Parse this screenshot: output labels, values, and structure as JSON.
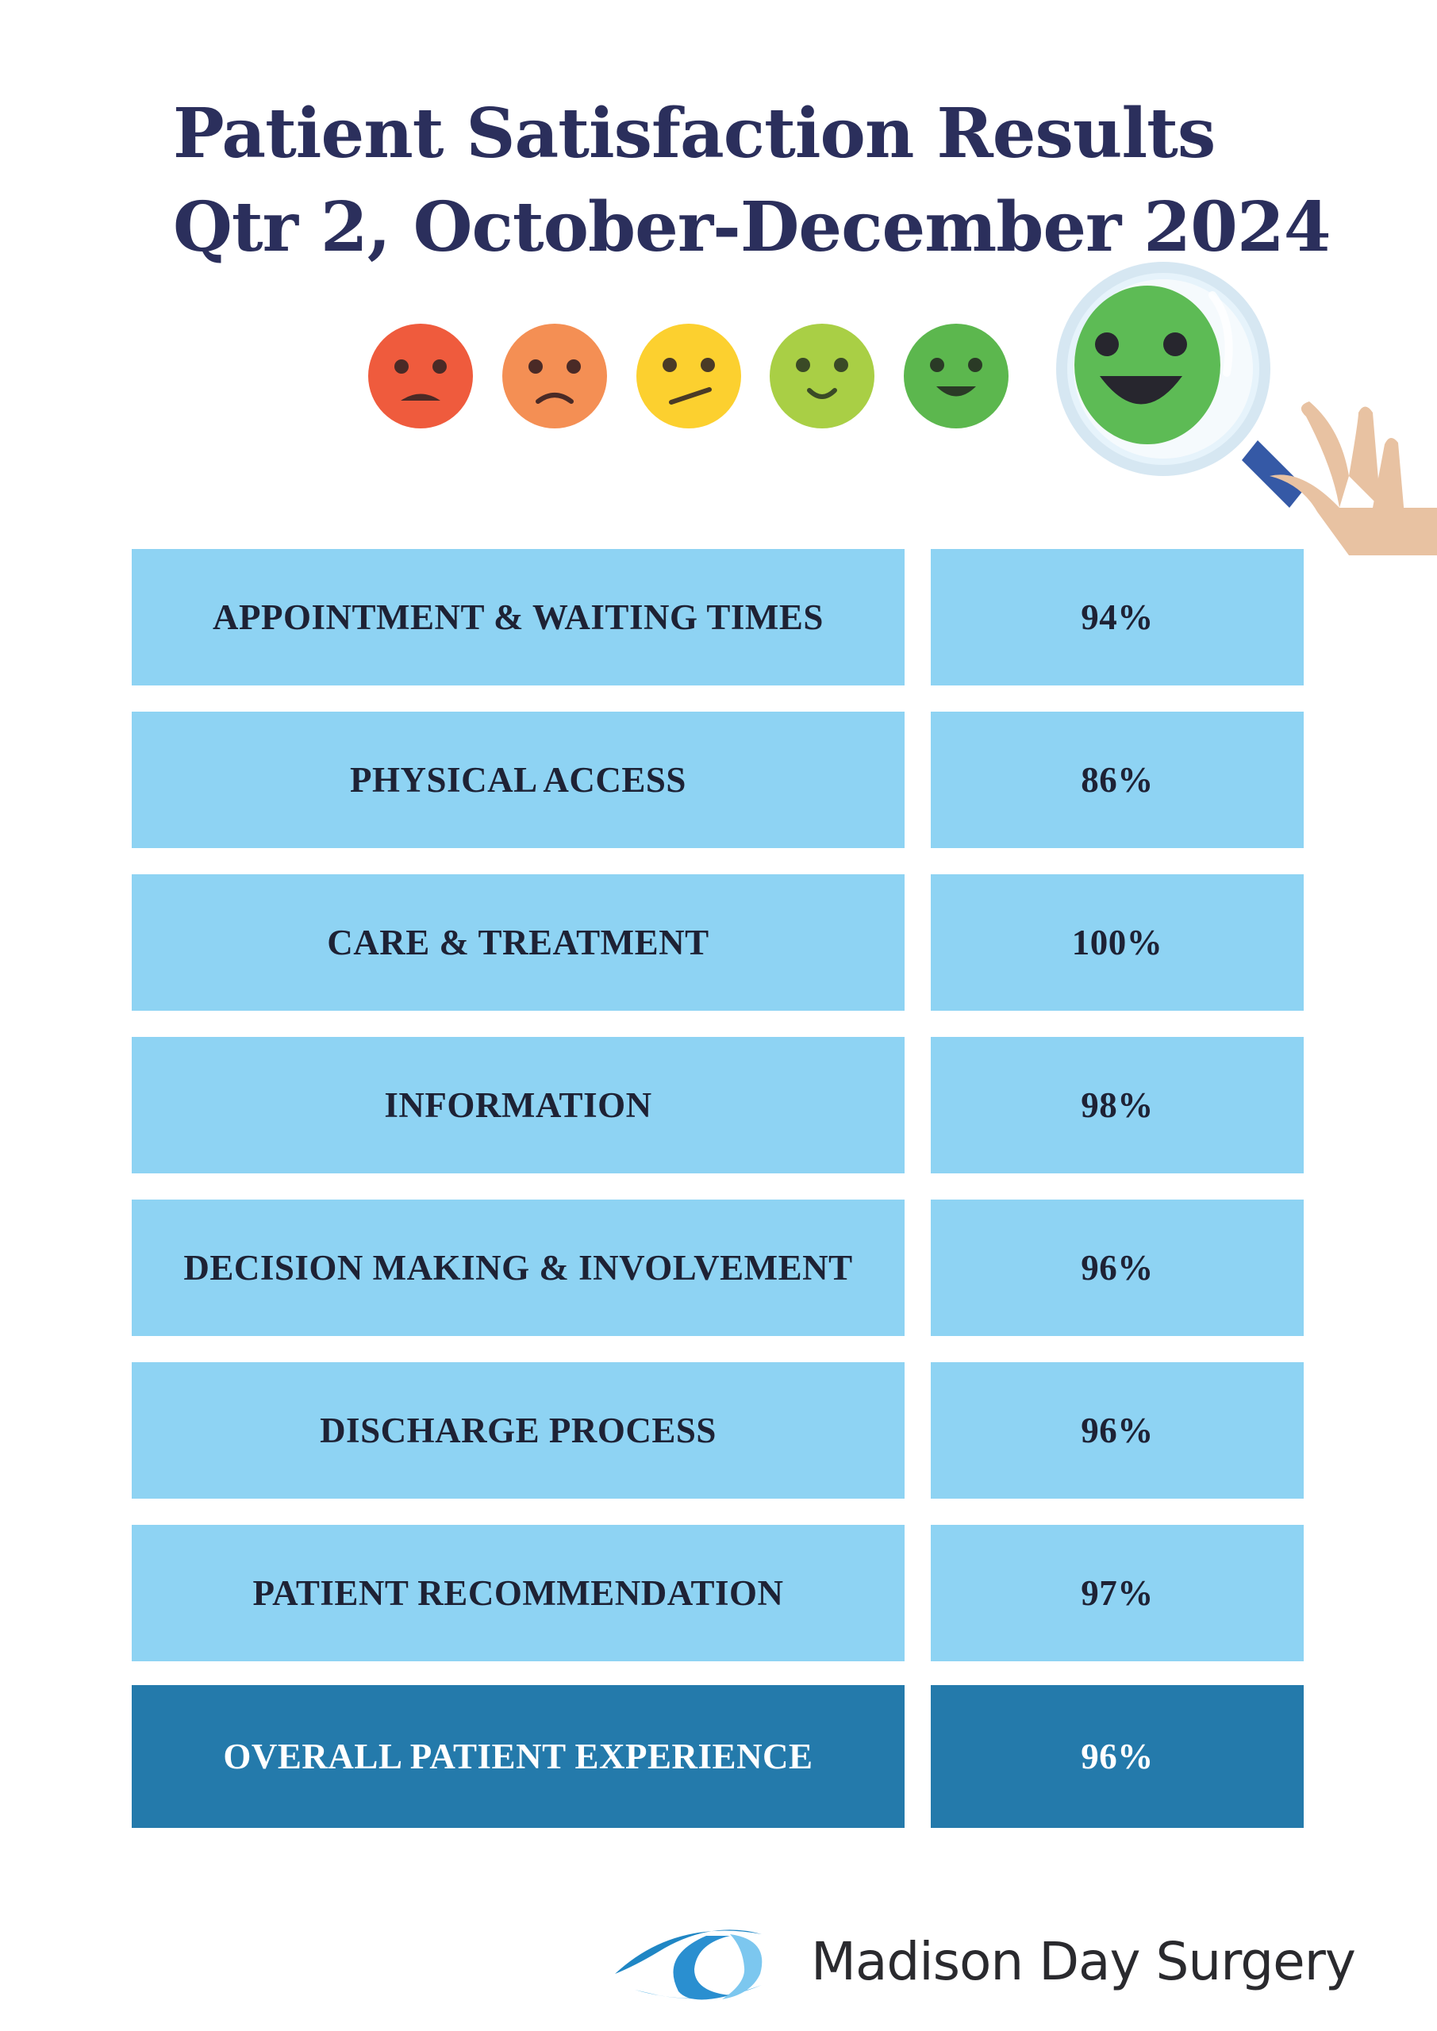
{
  "header": {
    "title_line1": "Patient Satisfaction Results",
    "title_line2": "Qtr 2, October-December 2024"
  },
  "rating_faces": [
    {
      "icon": "very-unhappy-face-icon",
      "color": "#ef5b3d"
    },
    {
      "icon": "unhappy-face-icon",
      "color": "#f48f54"
    },
    {
      "icon": "neutral-face-icon",
      "color": "#fcd02f"
    },
    {
      "icon": "slight-smile-face-icon",
      "color": "#a9cf45"
    },
    {
      "icon": "smile-face-icon",
      "color": "#5cb74e"
    },
    {
      "icon": "big-smile-face-icon",
      "color": "#5dbb55"
    }
  ],
  "magnifier_icon": "magnifying-glass-hand-icon",
  "results": [
    {
      "label": "APPOINTMENT & WAITING TIMES",
      "value": "94%"
    },
    {
      "label": "PHYSICAL ACCESS",
      "value": "86%"
    },
    {
      "label": "CARE & TREATMENT",
      "value": "100%"
    },
    {
      "label": "INFORMATION",
      "value": "98%"
    },
    {
      "label": "DECISION MAKING & INVOLVEMENT",
      "value": "96%"
    },
    {
      "label": "DISCHARGE PROCESS",
      "value": "96%"
    },
    {
      "label": "PATIENT RECOMMENDATION",
      "value": "97%"
    }
  ],
  "overall": {
    "label": "OVERALL PATIENT EXPERIENCE",
    "value": "96%"
  },
  "colors": {
    "row": "#8ed3f3",
    "overall": "#247aab",
    "title": "#2b2f5c"
  },
  "footer": {
    "logo_icon": "eye-logo-icon",
    "brand": "Madison Day Surgery"
  }
}
